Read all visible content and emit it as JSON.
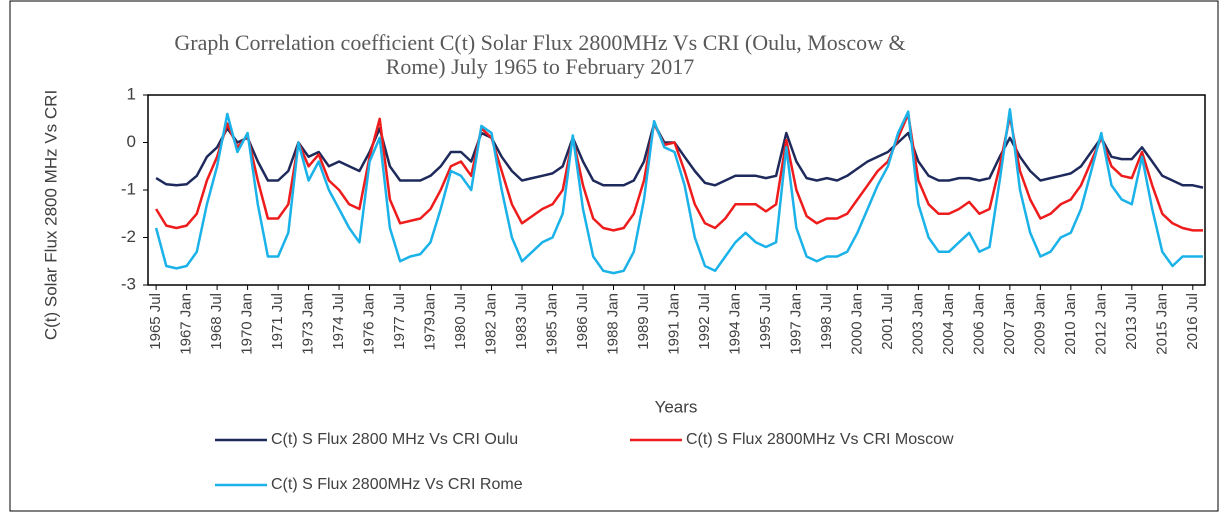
{
  "chart_data": {
    "type": "line",
    "title": "Graph Correlation coefficient C(t) Solar Flux 2800MHz Vs CRI (Oulu, Moscow & Rome) July 1965 to February 2017",
    "x_label": "Years",
    "y_label": "C(t) Solar Flux 2800 MHz Vs CRI",
    "xlim": [
      1965.1,
      2017.1
    ],
    "ylim": [
      -3,
      1
    ],
    "yticks": [
      -3,
      -2,
      -1,
      0,
      1
    ],
    "xticks": [
      {
        "value": 1965.5,
        "label": "1965 Jul"
      },
      {
        "value": 1967,
        "label": "1967 Jan"
      },
      {
        "value": 1968.5,
        "label": "1968 Jul"
      },
      {
        "value": 1970,
        "label": "1970 Jan"
      },
      {
        "value": 1971.5,
        "label": "1971 Jul"
      },
      {
        "value": 1973,
        "label": "1973 Jan"
      },
      {
        "value": 1974.5,
        "label": "1974 Jul"
      },
      {
        "value": 1976,
        "label": "1976 Jan"
      },
      {
        "value": 1977.5,
        "label": "1977 Jul"
      },
      {
        "value": 1979,
        "label": "1979Jan"
      },
      {
        "value": 1980.5,
        "label": "1980 Jul"
      },
      {
        "value": 1982,
        "label": "1982 Jan"
      },
      {
        "value": 1983.5,
        "label": "1983 Jul"
      },
      {
        "value": 1985,
        "label": "1985 Jan"
      },
      {
        "value": 1986.5,
        "label": "1986 Jul"
      },
      {
        "value": 1988,
        "label": "1988 Jan"
      },
      {
        "value": 1989.5,
        "label": "1989 Jul"
      },
      {
        "value": 1991,
        "label": "1991 Jan"
      },
      {
        "value": 1992.5,
        "label": "1992 Jul"
      },
      {
        "value": 1994,
        "label": "1994 Jan"
      },
      {
        "value": 1995.5,
        "label": "1995 Jul"
      },
      {
        "value": 1997,
        "label": "1997 Jan"
      },
      {
        "value": 1998.5,
        "label": "1998 Jul"
      },
      {
        "value": 2000,
        "label": "2000 Jan"
      },
      {
        "value": 2001.5,
        "label": "2001 Jul"
      },
      {
        "value": 2003,
        "label": "2003 Jan"
      },
      {
        "value": 2004.5,
        "label": "2004 Jan"
      },
      {
        "value": 2006,
        "label": "2006 Jan"
      },
      {
        "value": 2007.5,
        "label": "2007 Jan"
      },
      {
        "value": 2009,
        "label": "2009 Jan"
      },
      {
        "value": 2010.5,
        "label": "2010 Jan"
      },
      {
        "value": 2012,
        "label": "2012 Jan"
      },
      {
        "value": 2013.5,
        "label": "2013 Jul"
      },
      {
        "value": 2015,
        "label": "2015 Jan"
      },
      {
        "value": 2016.5,
        "label": "2016 Jul"
      }
    ],
    "x": [
      1965.5,
      1966,
      1966.5,
      1967,
      1967.5,
      1968,
      1968.5,
      1969,
      1969.5,
      1970,
      1970.5,
      1971,
      1971.5,
      1972,
      1972.5,
      1973,
      1973.5,
      1974,
      1974.5,
      1975,
      1975.5,
      1976,
      1976.5,
      1977,
      1977.5,
      1978,
      1978.5,
      1979,
      1979.5,
      1980,
      1980.5,
      1981,
      1981.5,
      1982,
      1982.5,
      1983,
      1983.5,
      1984,
      1984.5,
      1985,
      1985.5,
      1986,
      1986.5,
      1987,
      1987.5,
      1988,
      1988.5,
      1989,
      1989.5,
      1990,
      1990.5,
      1991,
      1991.5,
      1992,
      1992.5,
      1993,
      1993.5,
      1994,
      1994.5,
      1995,
      1995.5,
      1996,
      1996.5,
      1997,
      1997.5,
      1998,
      1998.5,
      1999,
      1999.5,
      2000,
      2000.5,
      2001,
      2001.5,
      2002,
      2002.5,
      2003,
      2003.5,
      2004,
      2004.5,
      2005,
      2005.5,
      2006,
      2006.5,
      2007,
      2007.5,
      2008,
      2008.5,
      2009,
      2009.5,
      2010,
      2010.5,
      2011,
      2011.5,
      2012,
      2012.5,
      2013,
      2013.5,
      2014,
      2014.5,
      2015,
      2015.5,
      2016,
      2016.5,
      2017
    ],
    "series": [
      {
        "name": "C(t) S Flux 2800 MHz Vs CRI Oulu",
        "color": "#1f2a5c",
        "values": [
          -0.75,
          -0.88,
          -0.9,
          -0.88,
          -0.7,
          -0.3,
          -0.1,
          0.3,
          0,
          0.1,
          -0.4,
          -0.8,
          -0.8,
          -0.6,
          0,
          -0.3,
          -0.2,
          -0.5,
          -0.4,
          -0.5,
          -0.6,
          -0.2,
          0.3,
          -0.5,
          -0.8,
          -0.8,
          -0.8,
          -0.7,
          -0.5,
          -0.2,
          -0.2,
          -0.4,
          0.2,
          0.1,
          -0.3,
          -0.6,
          -0.8,
          -0.75,
          -0.7,
          -0.65,
          -0.5,
          0.1,
          -0.4,
          -0.8,
          -0.9,
          -0.9,
          -0.9,
          -0.8,
          -0.4,
          0.4,
          0,
          0,
          -0.3,
          -0.6,
          -0.85,
          -0.9,
          -0.8,
          -0.7,
          -0.7,
          -0.7,
          -0.75,
          -0.7,
          0.2,
          -0.4,
          -0.75,
          -0.8,
          -0.75,
          -0.8,
          -0.7,
          -0.55,
          -0.4,
          -0.3,
          -0.2,
          0,
          0.2,
          -0.4,
          -0.7,
          -0.8,
          -0.8,
          -0.75,
          -0.75,
          -0.8,
          -0.75,
          -0.3,
          0.1,
          -0.3,
          -0.6,
          -0.8,
          -0.75,
          -0.7,
          -0.65,
          -0.5,
          -0.2,
          0.1,
          -0.3,
          -0.35,
          -0.35,
          -0.1,
          -0.4,
          -0.7,
          -0.8,
          -0.9,
          -0.9,
          -0.95
        ]
      },
      {
        "name": "C(t) S Flux 2800MHz Vs CRI Moscow",
        "color": "#ee1c1c",
        "values": [
          -1.4,
          -1.75,
          -1.8,
          -1.75,
          -1.5,
          -0.8,
          -0.3,
          0.4,
          -0.1,
          0.15,
          -0.8,
          -1.6,
          -1.6,
          -1.3,
          0,
          -0.5,
          -0.25,
          -0.8,
          -1,
          -1.3,
          -1.4,
          -0.3,
          0.5,
          -1.2,
          -1.7,
          -1.65,
          -1.6,
          -1.4,
          -1,
          -0.5,
          -0.4,
          -0.7,
          0.3,
          0.1,
          -0.6,
          -1.3,
          -1.7,
          -1.55,
          -1.4,
          -1.3,
          -1,
          0.1,
          -0.9,
          -1.6,
          -1.8,
          -1.85,
          -1.8,
          -1.5,
          -0.8,
          0.4,
          -0.05,
          0,
          -0.6,
          -1.3,
          -1.7,
          -1.8,
          -1.6,
          -1.3,
          -1.3,
          -1.3,
          -1.45,
          -1.3,
          0.05,
          -1,
          -1.55,
          -1.7,
          -1.6,
          -1.6,
          -1.5,
          -1.2,
          -0.9,
          -0.6,
          -0.4,
          0.1,
          0.6,
          -0.8,
          -1.3,
          -1.5,
          -1.5,
          -1.4,
          -1.25,
          -1.5,
          -1.4,
          -0.5,
          0.55,
          -0.6,
          -1.2,
          -1.6,
          -1.5,
          -1.3,
          -1.2,
          -0.9,
          -0.4,
          0.1,
          -0.5,
          -0.7,
          -0.75,
          -0.2,
          -0.9,
          -1.5,
          -1.7,
          -1.8,
          -1.85,
          -1.85
        ]
      },
      {
        "name": "C(t) S Flux 2800MHz Vs CRI Rome",
        "color": "#1ab2e8",
        "values": [
          -1.8,
          -2.6,
          -2.65,
          -2.6,
          -2.3,
          -1.3,
          -0.5,
          0.6,
          -0.2,
          0.2,
          -1.3,
          -2.4,
          -2.4,
          -1.9,
          0,
          -0.8,
          -0.4,
          -1,
          -1.4,
          -1.8,
          -2.1,
          -0.4,
          0.1,
          -1.8,
          -2.5,
          -2.4,
          -2.35,
          -2.1,
          -1.4,
          -0.6,
          -0.7,
          -1,
          0.35,
          0.2,
          -1,
          -2,
          -2.5,
          -2.3,
          -2.1,
          -2,
          -1.5,
          0.15,
          -1.4,
          -2.4,
          -2.7,
          -2.75,
          -2.7,
          -2.3,
          -1.2,
          0.45,
          -0.1,
          -0.2,
          -0.9,
          -2,
          -2.6,
          -2.7,
          -2.4,
          -2.1,
          -1.9,
          -2.1,
          -2.2,
          -2.1,
          -0.1,
          -1.8,
          -2.4,
          -2.5,
          -2.4,
          -2.4,
          -2.3,
          -1.9,
          -1.4,
          -0.9,
          -0.5,
          0.2,
          0.65,
          -1.3,
          -2,
          -2.3,
          -2.3,
          -2.1,
          -1.9,
          -2.3,
          -2.2,
          -0.8,
          0.7,
          -1,
          -1.9,
          -2.4,
          -2.3,
          -2,
          -1.9,
          -1.4,
          -0.6,
          0.2,
          -0.9,
          -1.2,
          -1.3,
          -0.3,
          -1.4,
          -2.3,
          -2.6,
          -2.4,
          -2.4,
          -2.4
        ]
      }
    ]
  }
}
